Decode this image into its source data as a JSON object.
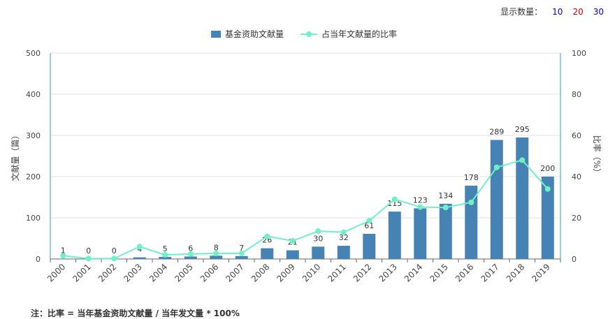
{
  "display_count": {
    "label": "显示数量：",
    "options": [
      {
        "label": "10",
        "color": "#0000cc"
      },
      {
        "label": "20",
        "color": "#cc0000"
      },
      {
        "label": "30",
        "color": "#0000cc"
      }
    ]
  },
  "note": "注：比率 = 当年基金资助文献量 / 当年发文量 * 100%",
  "colors": {
    "bar": "#4682b4",
    "line": "#6ef2c4",
    "axis": "#2aa0c0",
    "grid": "#e0e0e0",
    "text": "#333333"
  },
  "chart_data": {
    "type": "bar",
    "categories": [
      "2000",
      "2001",
      "2002",
      "2003",
      "2004",
      "2005",
      "2006",
      "2007",
      "2008",
      "2009",
      "2010",
      "2011",
      "2012",
      "2013",
      "2014",
      "2015",
      "2016",
      "2017",
      "2018",
      "2019"
    ],
    "series": [
      {
        "name": "基金资助文献量",
        "type": "bar",
        "axis": "left",
        "values": [
          1,
          0,
          0,
          4,
          5,
          6,
          8,
          7,
          26,
          21,
          30,
          32,
          61,
          115,
          123,
          134,
          178,
          289,
          295,
          200
        ]
      },
      {
        "name": "占当年文献量的比率",
        "type": "line",
        "axis": "right",
        "values": [
          1.6,
          0.2,
          0.2,
          6,
          2,
          2.4,
          2.7,
          2.7,
          11,
          8.8,
          13.5,
          13,
          18.5,
          29,
          25.2,
          25,
          27.5,
          44.5,
          48,
          34
        ]
      }
    ],
    "ylabel": "文献量（篇）",
    "y2label": "比率（%）",
    "ylim": [
      0,
      500
    ],
    "y2lim": [
      0,
      100
    ],
    "yticks": [
      0,
      100,
      200,
      300,
      400,
      500
    ],
    "y2ticks": [
      0,
      20,
      40,
      60,
      80,
      100
    ],
    "grid": true,
    "legend": "top-center"
  }
}
